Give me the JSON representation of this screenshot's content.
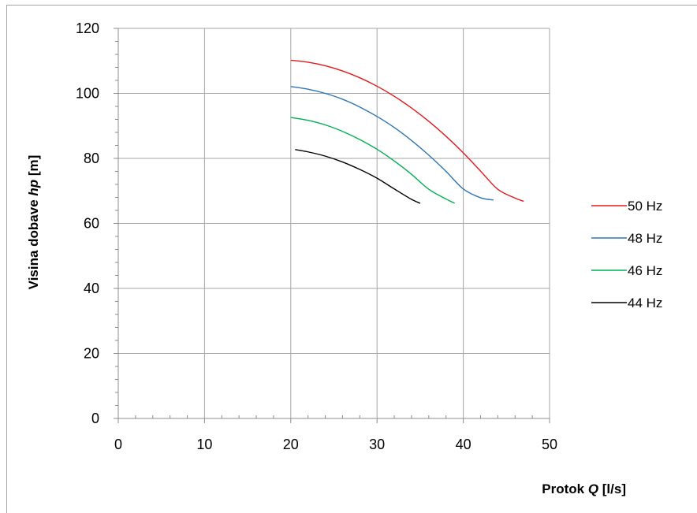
{
  "chart_data": {
    "type": "line",
    "title": "",
    "xlabel": {
      "prefix": "Protok ",
      "symbol": "Q",
      "unit": " [l/s]"
    },
    "ylabel": {
      "prefix": "Visina dobave ",
      "symbol": "hp",
      "unit": " [m]"
    },
    "xlim": [
      0,
      50
    ],
    "ylim": [
      0,
      120
    ],
    "xticks": [
      "0",
      "10",
      "20",
      "30",
      "40",
      "50"
    ],
    "yticks": [
      "0",
      "20",
      "40",
      "60",
      "80",
      "100",
      "120"
    ],
    "grid": true,
    "legend_position": "right",
    "series": [
      {
        "name": "50 Hz",
        "color": "#e31a1c",
        "x": [
          20,
          22,
          24,
          26,
          28,
          30,
          32,
          34,
          36,
          38,
          40,
          42,
          44,
          46,
          47
        ],
        "y": [
          110.2,
          109.6,
          108.5,
          106.9,
          104.8,
          102.2,
          99.1,
          95.5,
          91.4,
          86.8,
          81.7,
          76.1,
          70.5,
          67.8,
          66.8
        ]
      },
      {
        "name": "48 Hz",
        "color": "#2e75b6",
        "x": [
          20,
          22,
          24,
          26,
          28,
          30,
          32,
          34,
          36,
          38,
          40,
          42,
          43.5
        ],
        "y": [
          102.1,
          101.3,
          100.0,
          98.2,
          95.8,
          92.9,
          89.5,
          85.5,
          81.0,
          76.0,
          70.6,
          67.9,
          67.2
        ]
      },
      {
        "name": "46 Hz",
        "color": "#00b050",
        "x": [
          20,
          22,
          24,
          26,
          28,
          30,
          32,
          34,
          36,
          38,
          39
        ],
        "y": [
          92.6,
          91.7,
          90.3,
          88.3,
          85.8,
          82.8,
          79.2,
          75.1,
          70.5,
          67.5,
          66.2
        ]
      },
      {
        "name": "44 Hz",
        "color": "#000000",
        "x": [
          20.5,
          22,
          24,
          26,
          28,
          30,
          32,
          34,
          35
        ],
        "y": [
          82.7,
          82.0,
          80.7,
          78.9,
          76.6,
          73.9,
          70.6,
          67.4,
          66.2
        ]
      }
    ]
  }
}
